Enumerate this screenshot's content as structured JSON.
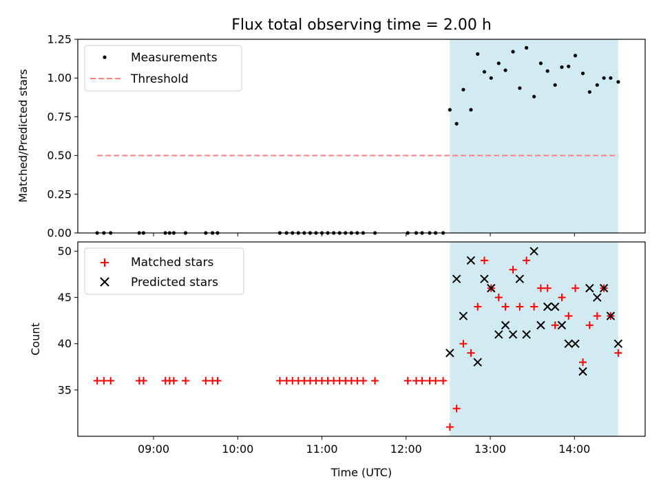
{
  "chart_data": {
    "title": "Flux total observing time = 2.00 h",
    "xlabel": "Time (UTC)",
    "x_ticks": [
      "09:00",
      "10:00",
      "11:00",
      "12:00",
      "13:00",
      "14:00"
    ],
    "x_tick_hours": [
      9,
      10,
      11,
      12,
      13,
      14
    ],
    "xlim_hours": [
      8.1,
      14.84
    ],
    "shaded_span_hours": [
      12.52,
      14.52
    ],
    "colors": {
      "shade": "#add8e6",
      "matched": "#ff0000",
      "predicted": "#000000",
      "threshold": "#ff7f7f",
      "measurements": "#000000"
    },
    "top": {
      "type": "scatter",
      "ylabel": "Matched/Predicted stars",
      "ylim": [
        0,
        1.25
      ],
      "y_ticks": [
        "0.00",
        "0.25",
        "0.50",
        "0.75",
        "1.00",
        "1.25"
      ],
      "y_tick_values": [
        0,
        0.25,
        0.5,
        0.75,
        1.0,
        1.25
      ],
      "legend": [
        "Measurements",
        "Threshold"
      ],
      "threshold": {
        "value": 0.5,
        "x_range_hours": [
          8.33,
          14.52
        ]
      },
      "measurements_x": [
        8.33,
        8.41,
        8.49,
        8.83,
        8.88,
        9.14,
        9.19,
        9.24,
        9.38,
        9.62,
        9.7,
        9.76,
        10.5,
        10.58,
        10.65,
        10.72,
        10.79,
        10.86,
        10.93,
        11.0,
        11.07,
        11.14,
        11.21,
        11.28,
        11.35,
        11.42,
        11.49,
        11.63,
        12.02,
        12.12,
        12.19,
        12.28,
        12.35,
        12.44,
        12.52,
        12.6,
        12.68,
        12.77,
        12.85,
        12.93,
        13.01,
        13.1,
        13.18,
        13.27,
        13.35,
        13.43,
        13.52,
        13.6,
        13.68,
        13.77,
        13.85,
        13.93,
        14.01,
        14.1,
        14.18,
        14.27,
        14.35,
        14.43,
        14.52
      ],
      "measurements_y": [
        0,
        0,
        0,
        0,
        0,
        0,
        0,
        0,
        0,
        0,
        0,
        0,
        0,
        0,
        0,
        0,
        0,
        0,
        0,
        0,
        0,
        0,
        0,
        0,
        0,
        0,
        0,
        0,
        0,
        0,
        0,
        0,
        0,
        0,
        0.795,
        0.705,
        0.925,
        0.795,
        1.155,
        1.04,
        1.0,
        1.095,
        1.05,
        1.17,
        0.935,
        1.195,
        0.88,
        1.095,
        1.045,
        0.955,
        1.07,
        1.075,
        1.145,
        1.03,
        0.91,
        0.955,
        1.0,
        1.0,
        0.975
      ]
    },
    "bottom": {
      "type": "scatter",
      "ylabel": "Count",
      "ylim": [
        30,
        51
      ],
      "y_ticks": [
        "35",
        "40",
        "45",
        "50"
      ],
      "y_tick_values": [
        35,
        40,
        45,
        50
      ],
      "legend": [
        "Matched stars",
        "Predicted stars"
      ],
      "matched_x": [
        8.33,
        8.41,
        8.49,
        8.83,
        8.88,
        9.14,
        9.19,
        9.24,
        9.38,
        9.62,
        9.7,
        9.76,
        10.5,
        10.58,
        10.65,
        10.72,
        10.79,
        10.86,
        10.93,
        11.0,
        11.07,
        11.14,
        11.21,
        11.28,
        11.35,
        11.42,
        11.49,
        11.63,
        12.02,
        12.12,
        12.19,
        12.28,
        12.35,
        12.44,
        12.52,
        12.6,
        12.68,
        12.77,
        12.85,
        12.93,
        13.01,
        13.1,
        13.18,
        13.27,
        13.35,
        13.43,
        13.52,
        13.6,
        13.68,
        13.77,
        13.85,
        13.93,
        14.01,
        14.1,
        14.18,
        14.27,
        14.35,
        14.43,
        14.52
      ],
      "matched_y": [
        36,
        36,
        36,
        36,
        36,
        36,
        36,
        36,
        36,
        36,
        36,
        36,
        36,
        36,
        36,
        36,
        36,
        36,
        36,
        36,
        36,
        36,
        36,
        36,
        36,
        36,
        36,
        36,
        36,
        36,
        36,
        36,
        36,
        36,
        31,
        33,
        40,
        39,
        44,
        49,
        46,
        45,
        44,
        48,
        44,
        49,
        44,
        46,
        46,
        42,
        45,
        43,
        46,
        38,
        42,
        43,
        46,
        43,
        39
      ],
      "predicted_x": [
        12.52,
        12.6,
        12.68,
        12.77,
        12.85,
        12.93,
        13.01,
        13.1,
        13.18,
        13.27,
        13.35,
        13.43,
        13.52,
        13.6,
        13.68,
        13.77,
        13.85,
        13.93,
        14.01,
        14.1,
        14.18,
        14.27,
        14.35,
        14.43,
        14.52
      ],
      "predicted_y": [
        39,
        47,
        43,
        49,
        38,
        47,
        46,
        41,
        42,
        41,
        47,
        41,
        50,
        42,
        44,
        44,
        42,
        40,
        40,
        37,
        46,
        45,
        46,
        43,
        40
      ]
    }
  }
}
